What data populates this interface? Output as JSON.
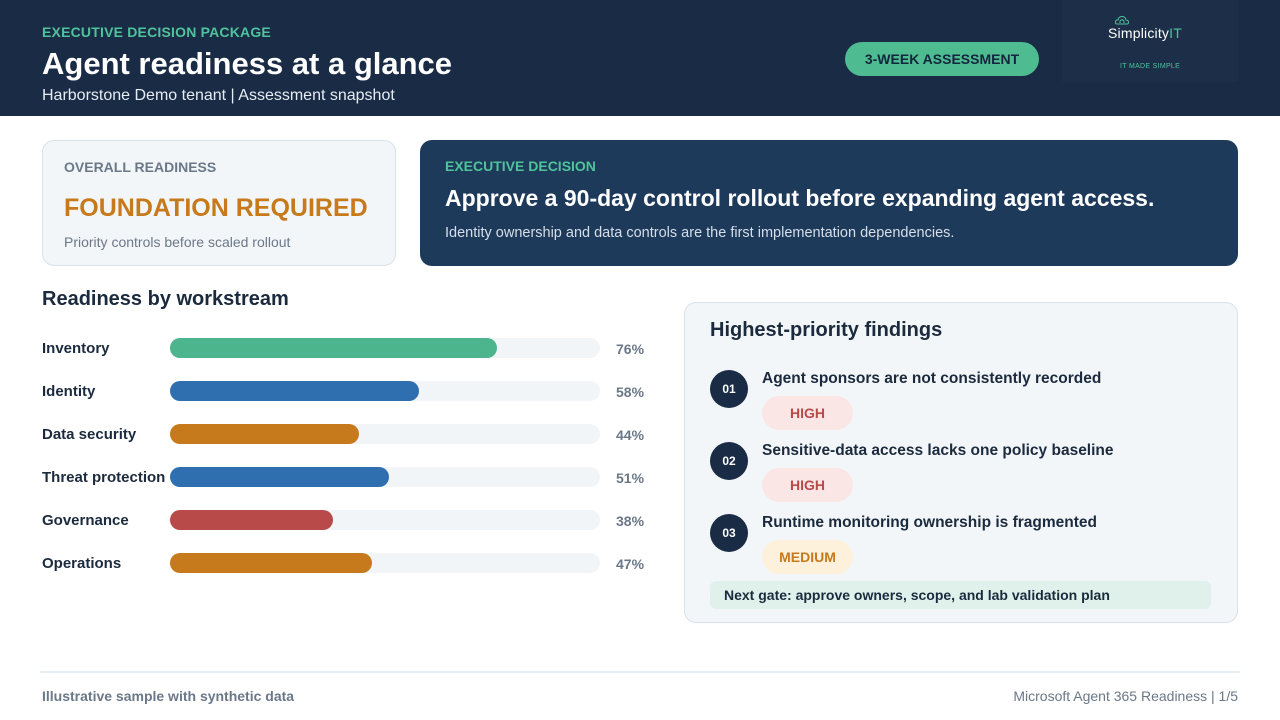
{
  "header": {
    "eyebrow": "EXECUTIVE DECISION PACKAGE",
    "title": "Agent readiness at a glance",
    "subtitle": "Harborstone Demo tenant | Assessment snapshot",
    "badge": "3-WEEK ASSESSMENT",
    "logo": {
      "word": "Simplicity",
      "suffix": "IT",
      "tagline": "IT MADE SIMPLE",
      "icon": "cloud-house-icon"
    }
  },
  "overall": {
    "label": "OVERALL READINESS",
    "status": "FOUNDATION REQUIRED",
    "sub": "Priority controls before scaled rollout"
  },
  "decision": {
    "label": "EXECUTIVE DECISION",
    "headline": "Approve a 90-day control rollout before expanding agent access.",
    "sub": "Identity ownership and data controls are the first implementation dependencies."
  },
  "workstreams": {
    "title": "Readiness by workstream",
    "items": [
      {
        "label": "Inventory",
        "pct": "76%",
        "value": 76,
        "color": "#4cb58e"
      },
      {
        "label": "Identity",
        "pct": "58%",
        "value": 58,
        "color": "#2f6fb0"
      },
      {
        "label": "Data security",
        "pct": "44%",
        "value": 44,
        "color": "#c67a1c"
      },
      {
        "label": "Threat protection",
        "pct": "51%",
        "value": 51,
        "color": "#2f6fb0"
      },
      {
        "label": "Governance",
        "pct": "38%",
        "value": 38,
        "color": "#b94a4a"
      },
      {
        "label": "Operations",
        "pct": "47%",
        "value": 47,
        "color": "#c67a1c"
      }
    ]
  },
  "findings": {
    "title": "Highest-priority findings",
    "items": [
      {
        "num": "01",
        "text": "Agent sponsors are not consistently recorded",
        "severity": "HIGH",
        "badge_bg": "#fbe6e6",
        "badge_fg": "#b94a4a"
      },
      {
        "num": "02",
        "text": "Sensitive-data access lacks one policy baseline",
        "severity": "HIGH",
        "badge_bg": "#fbe6e6",
        "badge_fg": "#b94a4a"
      },
      {
        "num": "03",
        "text": "Runtime monitoring ownership is fragmented",
        "severity": "MEDIUM",
        "badge_bg": "#fdf1dc",
        "badge_fg": "#c67a1c"
      }
    ],
    "next_gate": "Next gate: approve owners, scope, and lab validation plan"
  },
  "footer": {
    "left": "Illustrative sample with synthetic data",
    "right": "Microsoft Agent 365 Readiness | 1/5"
  }
}
